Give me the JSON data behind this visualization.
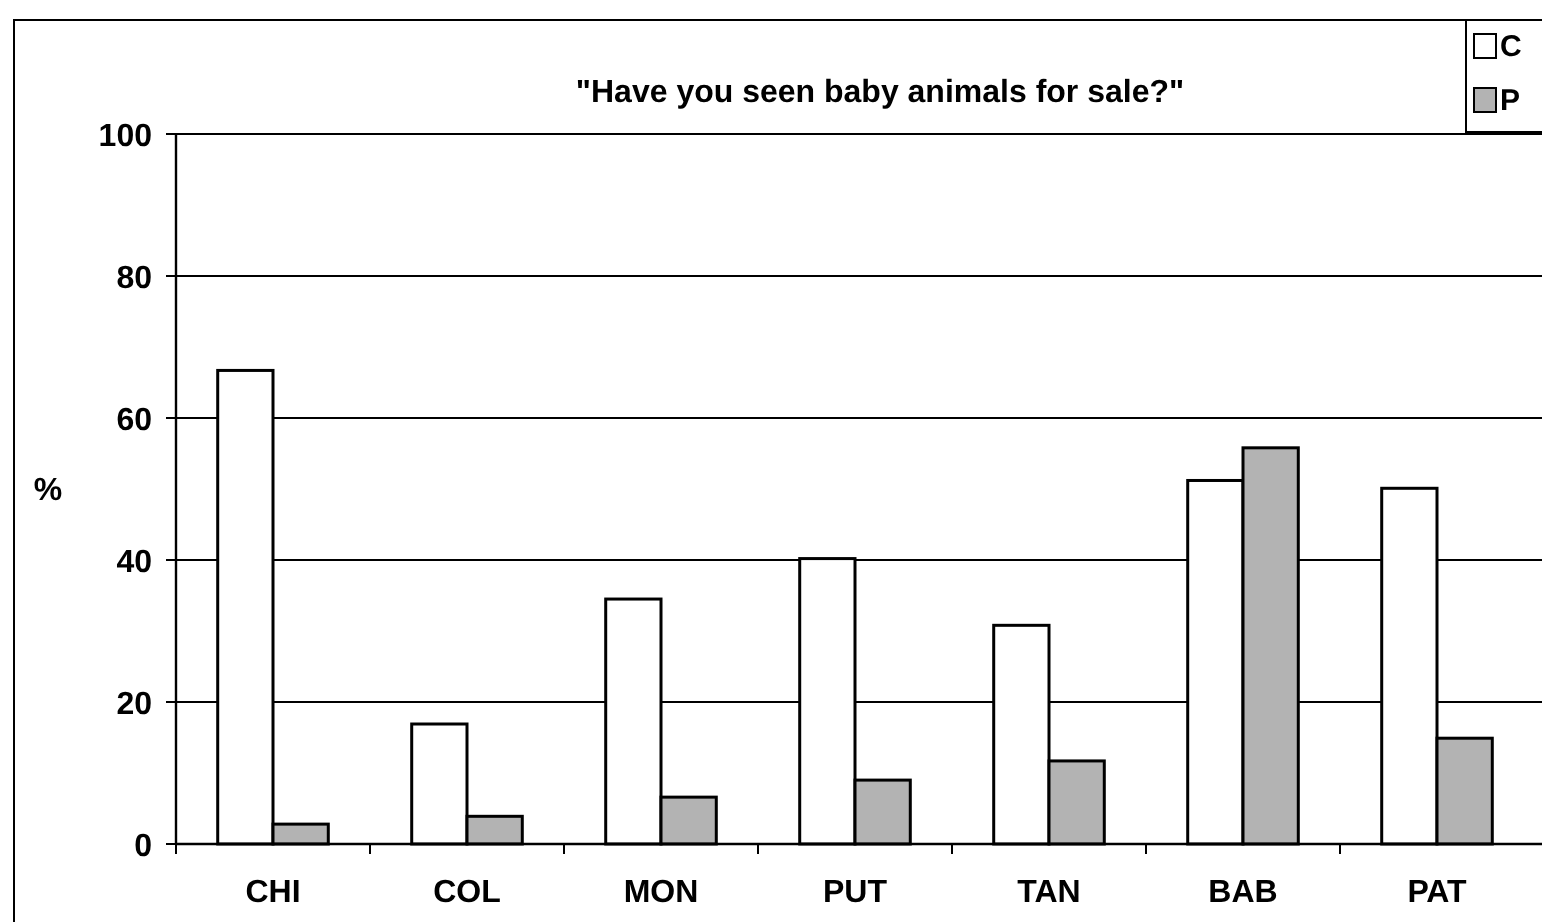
{
  "chart_data": {
    "type": "bar",
    "title": "\"Have you seen baby animals for sale?\"",
    "ylabel": "%",
    "categories": [
      "CHI",
      "COL",
      "MON",
      "PUT",
      "TAN",
      "BAB",
      "PAT"
    ],
    "series": [
      {
        "name": "C",
        "color": "#ffffff",
        "values": [
          66.7,
          16.9,
          34.5,
          40.2,
          30.8,
          51.2,
          50.1
        ]
      },
      {
        "name": "P",
        "color": "#b3b3b3",
        "values": [
          2.8,
          3.9,
          6.6,
          9.0,
          11.7,
          55.8,
          14.9
        ]
      }
    ],
    "ylim": [
      0,
      100
    ],
    "yticks": [
      0,
      20,
      40,
      60,
      80,
      100
    ],
    "grid": "y",
    "legend": "top right"
  }
}
